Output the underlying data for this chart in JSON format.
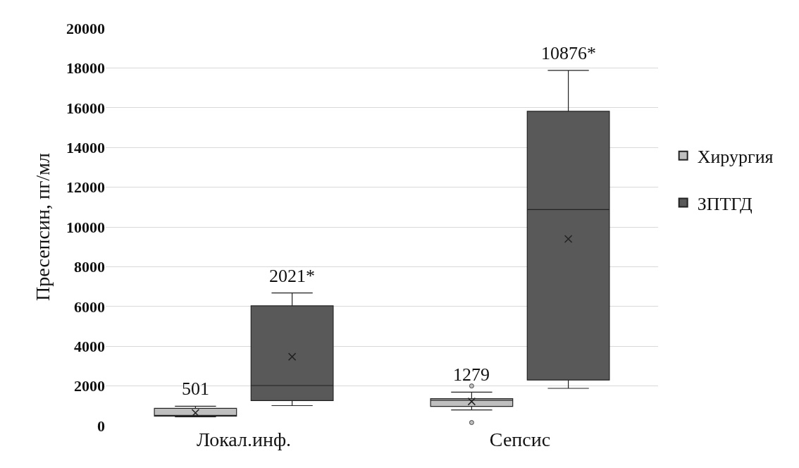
{
  "chart_data": {
    "type": "box",
    "ylabel": "Пресепсин, пг/мл",
    "categories": [
      "Локал.инф.",
      "Сепсис"
    ],
    "series": [
      {
        "name": "Хирургия",
        "color": "#bfbfbf",
        "value_labels": [
          "501",
          "1279"
        ],
        "boxes": [
          {
            "low": 450,
            "q1": 480,
            "median": 501,
            "q3": 870,
            "high": 980,
            "mean": 650
          },
          {
            "low": 790,
            "q1": 970,
            "median": 1279,
            "q3": 1360,
            "high": 1690,
            "mean": 1220,
            "outliers": [
              2000,
              160
            ]
          }
        ]
      },
      {
        "name": "ЗПТГД",
        "color": "#595959",
        "value_labels": [
          "2021*",
          "10876*"
        ],
        "boxes": [
          {
            "low": 1010,
            "q1": 1260,
            "median": 2021,
            "q3": 6030,
            "high": 6680,
            "mean": 3470
          },
          {
            "low": 1880,
            "q1": 2300,
            "median": 10876,
            "q3": 15820,
            "high": 17880,
            "mean": 9400
          }
        ]
      }
    ],
    "ylim": [
      0,
      20000
    ],
    "yticks": [
      0,
      2000,
      4000,
      6000,
      8000,
      10000,
      12000,
      14000,
      16000,
      18000,
      20000
    ],
    "grid": "y",
    "legend": "right",
    "marker": "cross"
  }
}
